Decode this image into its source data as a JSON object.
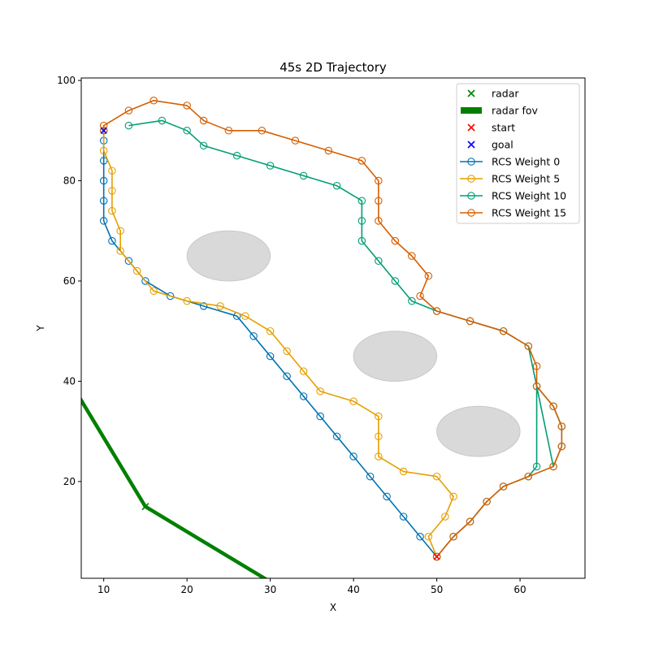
{
  "chart_data": {
    "type": "line",
    "title": "45s 2D Trajectory",
    "xlabel": "X",
    "ylabel": "Y",
    "xlim": [
      7.3,
      67.8
    ],
    "ylim": [
      0.7,
      100.5
    ],
    "xticks": [
      10,
      20,
      30,
      40,
      50,
      60
    ],
    "yticks": [
      20,
      40,
      60,
      80,
      100
    ],
    "grid": false,
    "legend_position": "top-right",
    "legend": [
      "radar",
      "radar fov",
      "start",
      "goal",
      "RCS Weight 0",
      "RCS Weight 5",
      "RCS Weight 10",
      "RCS Weight 15"
    ],
    "colors": {
      "radar": "#008000",
      "radar_fov": "#008000",
      "start": "#ff0000",
      "goal": "#0000ff",
      "obstacle_fill": "#d9d9d9",
      "obstacle_edge": "#c8c8c8"
    },
    "radar": {
      "name": "radar",
      "x": 15,
      "y": 15
    },
    "radar_fov": {
      "name": "radar fov",
      "x": [
        -5,
        15,
        50
      ],
      "y": [
        70,
        15,
        -20
      ]
    },
    "start": {
      "name": "start",
      "x": 50,
      "y": 5
    },
    "goal": {
      "name": "goal",
      "x": 10,
      "y": 90
    },
    "obstacles": [
      {
        "cx": 25,
        "cy": 65,
        "rx": 5,
        "ry": 5
      },
      {
        "cx": 45,
        "cy": 45,
        "rx": 5,
        "ry": 5
      },
      {
        "cx": 55,
        "cy": 30,
        "rx": 5,
        "ry": 5
      }
    ],
    "series": [
      {
        "name": "RCS Weight 0",
        "color": "#0072B2",
        "x": [
          50,
          48,
          46,
          44,
          42,
          40,
          38,
          36,
          34,
          32,
          30,
          28,
          26,
          22,
          18,
          15,
          13,
          11,
          10,
          10,
          10,
          10,
          10,
          10
        ],
        "y": [
          5,
          9,
          13,
          17,
          21,
          25,
          29,
          33,
          37,
          41,
          45,
          49,
          53,
          55,
          57,
          60,
          64,
          68,
          72,
          76,
          80,
          84,
          88,
          90
        ]
      },
      {
        "name": "RCS Weight 5",
        "color": "#E69F00",
        "x": [
          50,
          49,
          51,
          52,
          50,
          46,
          43,
          43,
          43,
          40,
          36,
          34,
          32,
          30,
          27,
          24,
          20,
          16,
          14,
          12,
          12,
          11,
          11,
          11,
          10,
          10
        ],
        "y": [
          5,
          9,
          13,
          17,
          21,
          22,
          25,
          29,
          33,
          36,
          38,
          42,
          46,
          50,
          53,
          55,
          56,
          58,
          62,
          66,
          70,
          74,
          78,
          82,
          86,
          90
        ]
      },
      {
        "name": "RCS Weight 10",
        "color": "#009E73",
        "x": [
          50,
          52,
          54,
          56,
          58,
          61,
          62,
          62,
          64,
          65,
          65,
          64,
          61,
          58,
          54,
          50,
          47,
          45,
          43,
          41,
          41,
          41,
          38,
          34,
          30,
          26,
          22,
          20,
          17,
          13
        ],
        "y": [
          5,
          9,
          12,
          16,
          19,
          21,
          23,
          39,
          35,
          31,
          27,
          23,
          47,
          50,
          52,
          54,
          56,
          60,
          64,
          68,
          72,
          76,
          79,
          81,
          83,
          85,
          87,
          90,
          92,
          91
        ]
      },
      {
        "name": "RCS Weight 15",
        "color": "#D55E00",
        "x": [
          50,
          52,
          54,
          56,
          58,
          61,
          64,
          65,
          65,
          64,
          62,
          62,
          61,
          58,
          54,
          50,
          48,
          49,
          47,
          45,
          43,
          43,
          43,
          41,
          37,
          33,
          29,
          25,
          22,
          20,
          16,
          13,
          10,
          10
        ],
        "y": [
          5,
          9,
          12,
          16,
          19,
          21,
          23,
          27,
          31,
          35,
          39,
          43,
          47,
          50,
          52,
          54,
          57,
          61,
          65,
          68,
          72,
          76,
          80,
          84,
          86,
          88,
          90,
          90,
          92,
          95,
          96,
          94,
          91,
          90
        ]
      }
    ]
  }
}
